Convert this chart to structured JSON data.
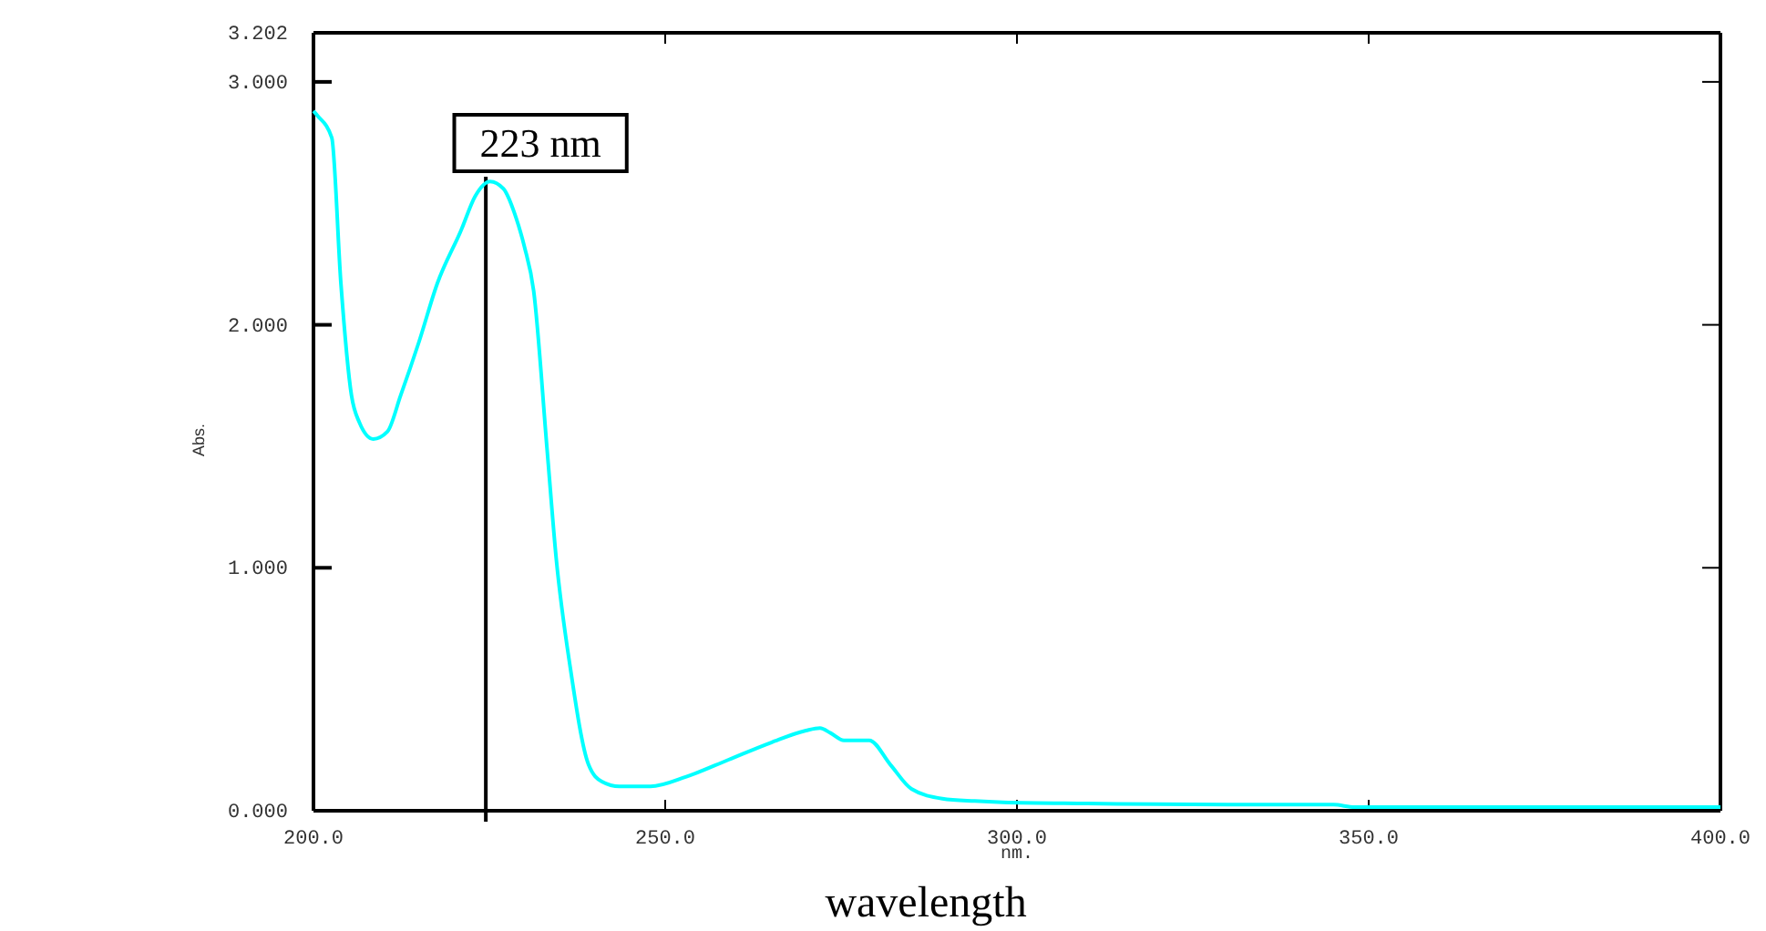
{
  "chart_data": {
    "type": "line",
    "xlabel": "nm.",
    "ylabel": "Abs.",
    "annotations": [
      "wavelength"
    ],
    "xlim": [
      200,
      400
    ],
    "ylim": [
      0,
      3.202
    ],
    "xticks": [
      {
        "value": 200,
        "label": "200.0"
      },
      {
        "value": 250,
        "label": "250.0"
      },
      {
        "value": 300,
        "label": "300.0"
      },
      {
        "value": 350,
        "label": "350.0"
      },
      {
        "value": 400,
        "label": "400.0"
      }
    ],
    "yticks": [
      {
        "value": 0,
        "label": "0.000"
      },
      {
        "value": 1,
        "label": "1.000"
      },
      {
        "value": 2,
        "label": "2.000"
      },
      {
        "value": 3,
        "label": "3.000"
      },
      {
        "value": 3.202,
        "label": "3.202"
      }
    ],
    "grid": false,
    "marker": "none",
    "line_style": "solid",
    "ref_lines": [
      {
        "axis": "x",
        "value": 224.5,
        "label": "223 nm",
        "color": "#000000"
      }
    ],
    "series": [
      {
        "color": "#00ffff",
        "x": [
          200,
          200.6,
          202.6,
          203.9,
          205.4,
          206.5,
          208.5,
          210.5,
          212.4,
          215,
          217.6,
          221,
          223,
          225.1,
          227,
          228.8,
          230,
          231.3,
          233.2,
          234.5,
          236.5,
          239.1,
          241,
          243.5,
          247.9,
          253,
          259,
          265,
          270,
          272,
          273.5,
          275.4,
          279,
          282,
          285,
          289.4,
          294,
          298,
          310,
          330,
          345,
          348,
          360,
          380,
          400
        ],
        "values": [
          2.88,
          2.86,
          2.77,
          2.17,
          1.71,
          1.6,
          1.53,
          1.56,
          1.71,
          1.93,
          2.17,
          2.39,
          2.53,
          2.59,
          2.56,
          2.44,
          2.32,
          2.14,
          1.49,
          1.04,
          0.59,
          0.19,
          0.12,
          0.1,
          0.1,
          0.14,
          0.21,
          0.28,
          0.33,
          0.34,
          0.32,
          0.29,
          0.29,
          0.19,
          0.09,
          0.05,
          0.04,
          0.035,
          0.03,
          0.025,
          0.025,
          0.015,
          0.015,
          0.015,
          0.015
        ]
      }
    ]
  }
}
